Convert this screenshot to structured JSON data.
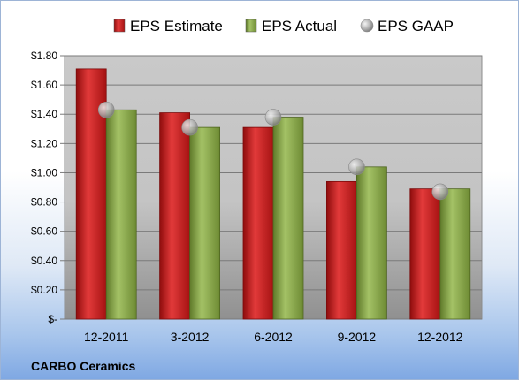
{
  "chart_data": {
    "type": "bar",
    "categories": [
      "12-2011",
      "3-2012",
      "6-2012",
      "9-2012",
      "12-2012"
    ],
    "series": [
      {
        "name": "EPS Estimate",
        "kind": "bar",
        "color": "#cc1f1f",
        "values": [
          1.71,
          1.41,
          1.31,
          0.94,
          0.89
        ]
      },
      {
        "name": "EPS Actual",
        "kind": "bar",
        "color": "#8aa84a",
        "values": [
          1.43,
          1.31,
          1.38,
          1.04,
          0.89
        ]
      },
      {
        "name": "EPS GAAP",
        "kind": "marker",
        "color": "#b8b8b8",
        "values": [
          1.43,
          1.31,
          1.38,
          1.04,
          0.87
        ]
      }
    ],
    "y_ticks": [
      0,
      0.2,
      0.4,
      0.6,
      0.8,
      1.0,
      1.2,
      1.4,
      1.6,
      1.8
    ],
    "y_tick_labels": [
      "$-",
      "$0.20",
      "$0.40",
      "$0.60",
      "$0.80",
      "$1.00",
      "$1.20",
      "$1.40",
      "$1.60",
      "$1.80"
    ],
    "ylim": [
      0,
      1.8
    ],
    "grid": true,
    "legend_position": "top",
    "company": "CARBO Ceramics"
  }
}
